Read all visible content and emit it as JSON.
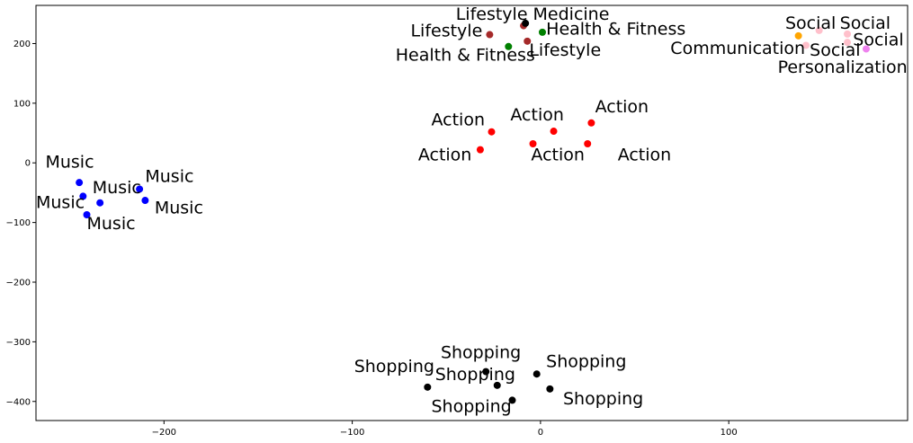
{
  "chart_data": {
    "type": "scatter",
    "title": "",
    "xlabel": "",
    "ylabel": "",
    "xlim": [
      -268,
      195
    ],
    "ylim": [
      -432,
      264
    ],
    "grid": false,
    "x_ticks": [
      {
        "value": -200,
        "label": "−200"
      },
      {
        "value": -100,
        "label": "−100"
      },
      {
        "value": 0,
        "label": "0"
      },
      {
        "value": 100,
        "label": "100"
      }
    ],
    "y_ticks": [
      {
        "value": 200,
        "label": "200"
      },
      {
        "value": 100,
        "label": "100"
      },
      {
        "value": 0,
        "label": "0"
      },
      {
        "value": -100,
        "label": "−100"
      },
      {
        "value": -200,
        "label": "−200"
      },
      {
        "value": -300,
        "label": "−300"
      },
      {
        "value": -400,
        "label": "−400"
      }
    ],
    "points": [
      {
        "x": -245,
        "y": -33,
        "color": "#0000ff"
      },
      {
        "x": -243,
        "y": -56,
        "color": "#0000ff"
      },
      {
        "x": -234,
        "y": -67,
        "color": "#0000ff"
      },
      {
        "x": -241,
        "y": -87,
        "color": "#0000ff"
      },
      {
        "x": -213,
        "y": -44,
        "color": "#0000ff"
      },
      {
        "x": -210,
        "y": -63,
        "color": "#0000ff"
      },
      {
        "x": -26,
        "y": 52,
        "color": "#ff0000"
      },
      {
        "x": -32,
        "y": 22,
        "color": "#ff0000"
      },
      {
        "x": 7,
        "y": 53,
        "color": "#ff0000"
      },
      {
        "x": -4,
        "y": 32,
        "color": "#ff0000"
      },
      {
        "x": 27,
        "y": 67,
        "color": "#ff0000"
      },
      {
        "x": 25,
        "y": 32,
        "color": "#ff0000"
      },
      {
        "x": -27,
        "y": 215,
        "color": "#a52a2a"
      },
      {
        "x": -9,
        "y": 230,
        "color": "#a52a2a"
      },
      {
        "x": -7,
        "y": 204,
        "color": "#a52a2a"
      },
      {
        "x": -17,
        "y": 195,
        "color": "#008000"
      },
      {
        "x": 1,
        "y": 219,
        "color": "#008000"
      },
      {
        "x": -8,
        "y": 234,
        "color": "#000000"
      },
      {
        "x": 137,
        "y": 213,
        "color": "#ffa500"
      },
      {
        "x": 141,
        "y": 197,
        "color": "#ffc0cb"
      },
      {
        "x": 148,
        "y": 222,
        "color": "#ffc0cb"
      },
      {
        "x": 163,
        "y": 216,
        "color": "#ffc0cb"
      },
      {
        "x": 163,
        "y": 202,
        "color": "#ffc0cb"
      },
      {
        "x": 173,
        "y": 191,
        "color": "#ee82ee"
      },
      {
        "x": -60,
        "y": -376,
        "color": "#000000"
      },
      {
        "x": -29,
        "y": -350,
        "color": "#000000"
      },
      {
        "x": -23,
        "y": -373,
        "color": "#000000"
      },
      {
        "x": -15,
        "y": -398,
        "color": "#000000"
      },
      {
        "x": -2,
        "y": -354,
        "color": "#000000"
      },
      {
        "x": 5,
        "y": -379,
        "color": "#000000"
      }
    ],
    "annotations": [
      {
        "text": "Music",
        "x": -263,
        "y": -8
      },
      {
        "text": "Music",
        "x": -238,
        "y": -51
      },
      {
        "text": "Music",
        "x": -210,
        "y": -32
      },
      {
        "text": "Music",
        "x": -268,
        "y": -76
      },
      {
        "text": "Music",
        "x": -205,
        "y": -85
      },
      {
        "text": "Music",
        "x": -241,
        "y": -111
      },
      {
        "text": "Action",
        "x": -58,
        "y": 63
      },
      {
        "text": "Action",
        "x": -16,
        "y": 71
      },
      {
        "text": "Action",
        "x": 29,
        "y": 85
      },
      {
        "text": "Action",
        "x": -65,
        "y": 4
      },
      {
        "text": "Action",
        "x": -5,
        "y": 4
      },
      {
        "text": "Action",
        "x": 41,
        "y": 4
      },
      {
        "text": "Lifestyle",
        "x": -45,
        "y": 240
      },
      {
        "text": "Medicine",
        "x": -4,
        "y": 240
      },
      {
        "text": "Lifestyle",
        "x": -69,
        "y": 212
      },
      {
        "text": "Health & Fitness",
        "x": 3,
        "y": 215
      },
      {
        "text": "Health & Fitness",
        "x": -77,
        "y": 171
      },
      {
        "text": "Lifestyle",
        "x": -6,
        "y": 180
      },
      {
        "text": "Social",
        "x": 130,
        "y": 225
      },
      {
        "text": "Social",
        "x": 159,
        "y": 225
      },
      {
        "text": "Social",
        "x": 166,
        "y": 197
      },
      {
        "text": "Communication",
        "x": 69,
        "y": 183
      },
      {
        "text": "Social",
        "x": 143,
        "y": 180
      },
      {
        "text": "Personalization",
        "x": 126,
        "y": 151
      },
      {
        "text": "Shopping",
        "x": -99,
        "y": -351
      },
      {
        "text": "Shopping",
        "x": -53,
        "y": -327
      },
      {
        "text": "Shopping",
        "x": -56,
        "y": -364
      },
      {
        "text": "Shopping",
        "x": -58,
        "y": -418
      },
      {
        "text": "Shopping",
        "x": 3,
        "y": -342
      },
      {
        "text": "Shopping",
        "x": 12,
        "y": -405
      }
    ]
  }
}
